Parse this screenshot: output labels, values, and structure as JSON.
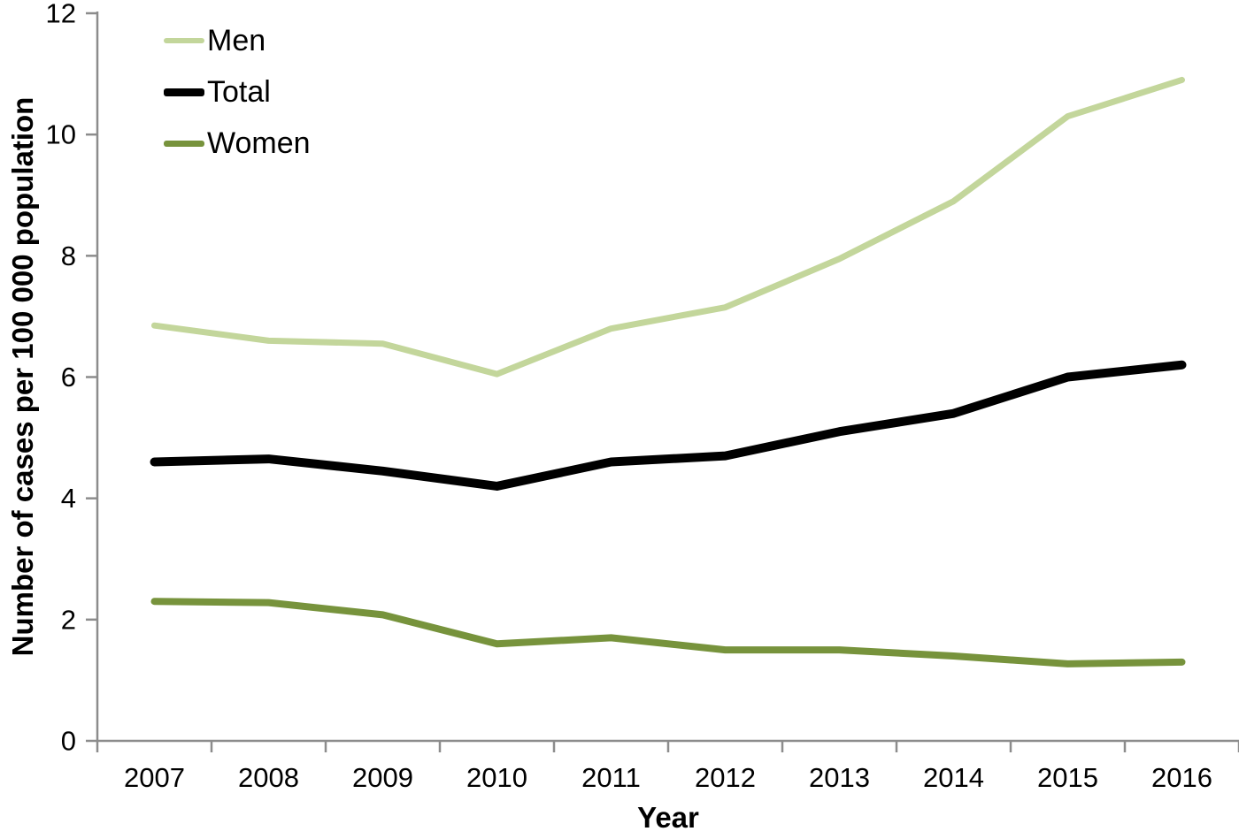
{
  "chart_data": {
    "type": "line",
    "title": "",
    "xlabel": "Year",
    "ylabel": "Number of cases per 100 000 population",
    "categories": [
      "2007",
      "2008",
      "2009",
      "2010",
      "2011",
      "2012",
      "2013",
      "2014",
      "2015",
      "2016"
    ],
    "series": [
      {
        "name": "Men",
        "color": "#c3d69b",
        "stroke_width": 7,
        "values": [
          6.85,
          6.6,
          6.55,
          6.05,
          6.8,
          7.15,
          7.95,
          8.9,
          10.3,
          10.9
        ]
      },
      {
        "name": "Total",
        "color": "#000000",
        "stroke_width": 10,
        "values": [
          4.6,
          4.65,
          4.45,
          4.2,
          4.6,
          4.7,
          5.1,
          5.4,
          6.0,
          6.2
        ]
      },
      {
        "name": "Women",
        "color": "#77933c",
        "stroke_width": 8,
        "values": [
          2.3,
          2.28,
          2.08,
          1.6,
          1.7,
          1.5,
          1.5,
          1.4,
          1.27,
          1.3
        ]
      }
    ],
    "ylim": [
      0,
      12
    ],
    "y_ticks": [
      0,
      2,
      4,
      6,
      8,
      10,
      12
    ],
    "legend_position": "top-left",
    "grid": false,
    "axis_color": "#8c8c8c",
    "label_color": "#000000"
  }
}
